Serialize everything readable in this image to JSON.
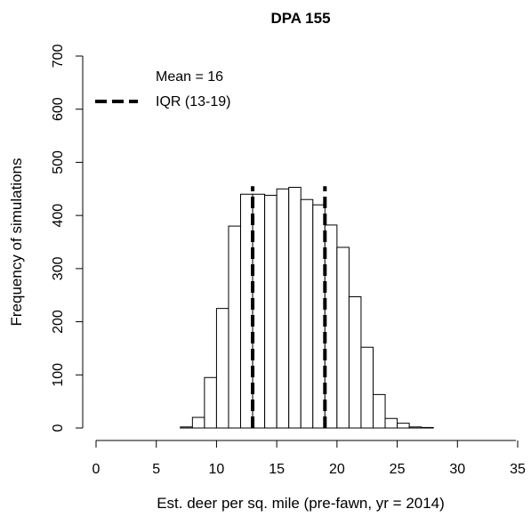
{
  "chart_data": {
    "type": "bar",
    "title": "DPA 155",
    "xlabel": "Est. deer per sq. mile (pre-fawn, yr = 2014)",
    "ylabel": "Frequency of simulations",
    "xlim": [
      0,
      35
    ],
    "ylim": [
      0,
      700
    ],
    "x_ticks": [
      "0",
      "5",
      "10",
      "15",
      "20",
      "25",
      "30",
      "35"
    ],
    "y_ticks": [
      "0",
      "100",
      "200",
      "300",
      "400",
      "500",
      "600",
      "700"
    ],
    "bin_width": 1,
    "bins": [
      {
        "start": 7,
        "value": 2
      },
      {
        "start": 8,
        "value": 20
      },
      {
        "start": 9,
        "value": 95
      },
      {
        "start": 10,
        "value": 225
      },
      {
        "start": 11,
        "value": 380
      },
      {
        "start": 12,
        "value": 440
      },
      {
        "start": 13,
        "value": 440
      },
      {
        "start": 14,
        "value": 438
      },
      {
        "start": 15,
        "value": 450
      },
      {
        "start": 16,
        "value": 453
      },
      {
        "start": 17,
        "value": 430
      },
      {
        "start": 18,
        "value": 420
      },
      {
        "start": 19,
        "value": 382
      },
      {
        "start": 20,
        "value": 340
      },
      {
        "start": 21,
        "value": 247
      },
      {
        "start": 22,
        "value": 152
      },
      {
        "start": 23,
        "value": 63
      },
      {
        "start": 24,
        "value": 18
      },
      {
        "start": 25,
        "value": 9
      },
      {
        "start": 26,
        "value": 2
      },
      {
        "start": 27,
        "value": 1
      }
    ],
    "vlines": [
      {
        "x": 13,
        "label": "IQR (13-19)",
        "style": "dashed"
      },
      {
        "x": 19,
        "label": "IQR (13-19)",
        "style": "dashed"
      }
    ],
    "legend": {
      "position": "top-left",
      "entries": [
        {
          "label": "Mean = 16",
          "line": false
        },
        {
          "label": "IQR (13-19)",
          "line": true,
          "style": "dashed"
        }
      ]
    },
    "grid": false
  }
}
